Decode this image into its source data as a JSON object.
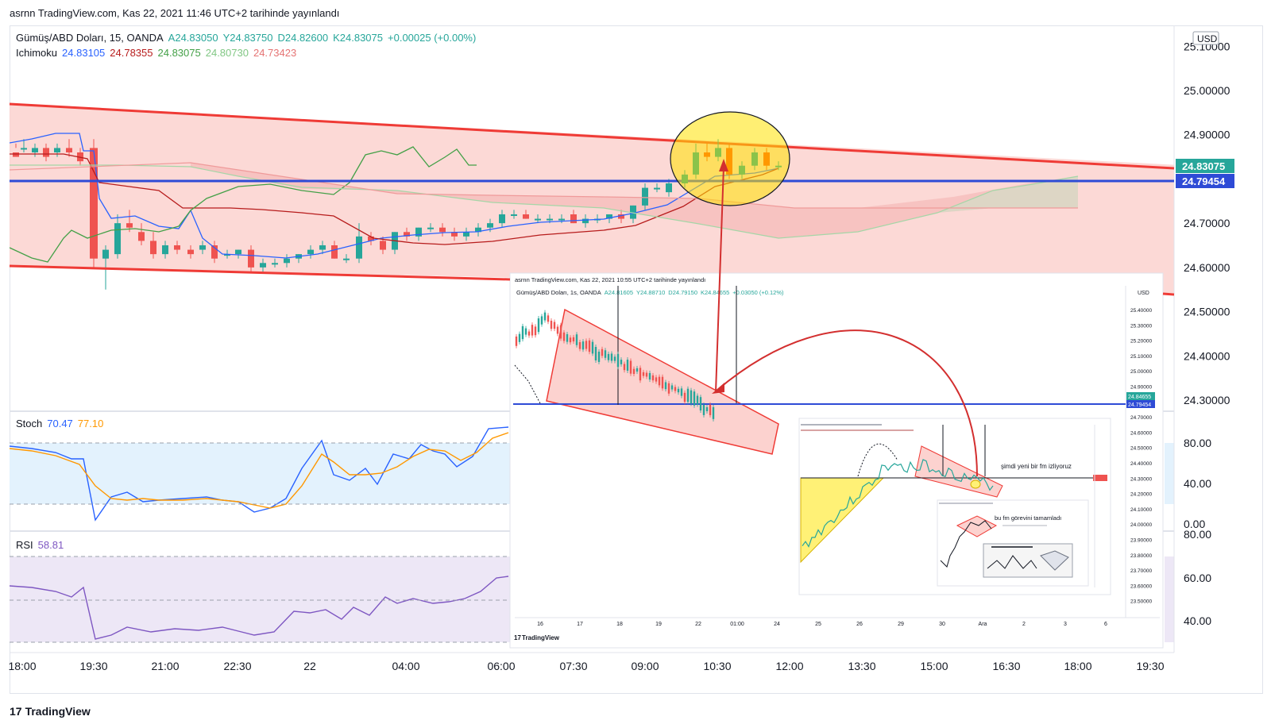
{
  "header": {
    "published": "asrnn TradingView.com, Kas 22, 2021 11:46 UTC+2 tarihinde yayınlandı"
  },
  "legend": {
    "symbol": "Gümüş/ABD Doları, 15, OANDA",
    "open": "A24.83050",
    "high": "Y24.83750",
    "low": "D24.82600",
    "close": "K24.83075",
    "change": "+0.00025 (+0.00%)",
    "ichimoku_label": "Ichimoku",
    "ichimoku_values": [
      "24.83105",
      "24.78355",
      "24.83075",
      "24.80730",
      "24.73423"
    ]
  },
  "colors": {
    "up": "#26a69a",
    "down": "#ef5350",
    "tenkan": "#2962ff",
    "kijun": "#b71c1c",
    "lagging": "#43a047",
    "span_a": "#a5d6a7",
    "span_b": "#ef9a9a",
    "hline": "#2e4bd6",
    "channel": "#ef3b36",
    "stoch_k": "#2962ff",
    "stoch_d": "#ff9800",
    "rsi": "#7e57c2"
  },
  "price_axis": {
    "unit": "USD",
    "ticks": [
      "25.10000",
      "25.00000",
      "24.90000",
      "24.70000",
      "24.60000",
      "24.50000",
      "24.40000",
      "24.30000"
    ],
    "last_price": "24.83075",
    "hline_price": "24.79454"
  },
  "time_axis": {
    "ticks": [
      "18:00",
      "19:30",
      "21:00",
      "22:30",
      "22",
      "04:00",
      "06:00",
      "07:30",
      "09:00",
      "10:30",
      "12:00",
      "13:30",
      "15:00",
      "16:30",
      "18:00",
      "19:30"
    ]
  },
  "stoch": {
    "label": "Stoch",
    "k": "70.47",
    "d": "77.10",
    "ticks": [
      "80.00",
      "40.00",
      "0.00"
    ]
  },
  "rsi": {
    "label": "RSI",
    "value": "58.81",
    "ticks": [
      "80.00",
      "60.00",
      "40.00"
    ]
  },
  "inset1": {
    "published": "asrnn TradingView.com, Kas 22, 2021 10:55 UTC+2 tarihinde yayınlandı",
    "legend": "Gümüş/ABD Doları, 1s, OANDA",
    "open": "A24.81605",
    "high": "Y24.88710",
    "low": "D24.79150",
    "close": "K24.84655",
    "change": "+0.03050 (+0.12%)",
    "unit": "USD",
    "ticks": [
      "25.40000",
      "25.30000",
      "25.20000",
      "25.10000",
      "25.00000",
      "24.90000",
      "24.80000",
      "24.70000",
      "24.60000",
      "24.50000",
      "24.40000",
      "24.30000",
      "24.20000",
      "24.10000",
      "24.00000",
      "23.90000",
      "23.80000",
      "23.70000",
      "23.60000",
      "23.50000"
    ],
    "labels": [
      "24.84655",
      "24.79454"
    ],
    "time_ticks": [
      "16",
      "17",
      "18",
      "19",
      "22",
      "01:00",
      "24",
      "25",
      "26",
      "29",
      "30",
      "Ara",
      "2",
      "3",
      "6"
    ]
  },
  "inset2": {
    "text1": "şimdi yeni bir fm izliyoruz"
  },
  "inset3": {
    "text1": "bu fm görevini tamamladı"
  },
  "brand": {
    "name": "TradingView"
  },
  "chart_data": {
    "type": "candlestick",
    "title": "",
    "series": [
      {
        "name": "Gümüş/ABD Doları, 15, OANDA",
        "x": [
          "18:00",
          "19:30",
          "21:00",
          "22:30",
          "22",
          "04:00",
          "06:00",
          "07:30",
          "09:00",
          "10:30"
        ],
        "close": [
          24.86,
          24.62,
          24.63,
          24.6,
          24.62,
          24.66,
          24.72,
          24.71,
          24.77,
          24.83075
        ]
      }
    ],
    "hline": 24.79454,
    "ylim": [
      24.25,
      25.15
    ]
  }
}
